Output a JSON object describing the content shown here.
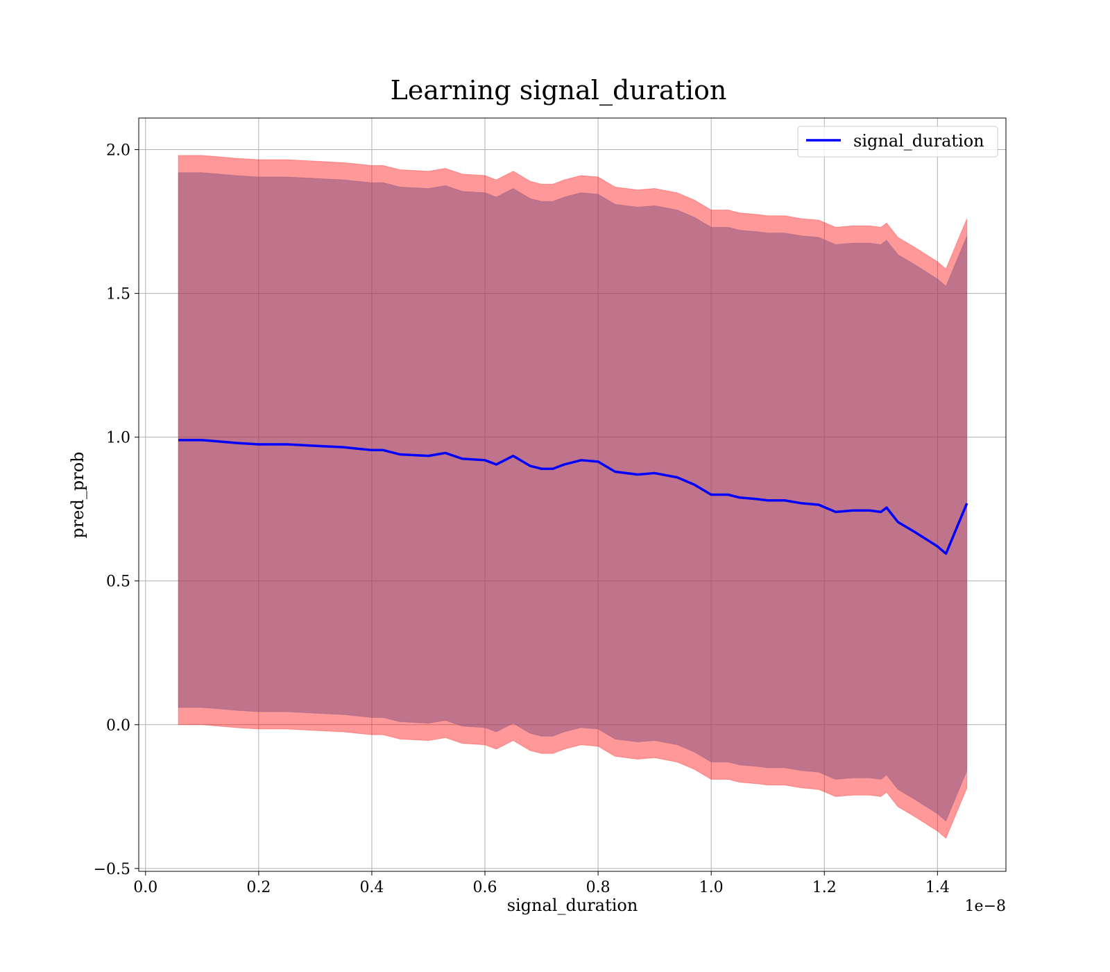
{
  "chart_data": {
    "type": "line",
    "title": "Learning signal_duration",
    "xlabel": "signal_duration",
    "ylabel": "pred_prob",
    "x_offset_label": "1e−8",
    "xlim": [
      -0.012,
      1.521
    ],
    "ylim": [
      -0.51,
      2.11
    ],
    "x_ticks": [
      0.0,
      0.2,
      0.4,
      0.6,
      0.8,
      1.0,
      1.2,
      1.4
    ],
    "x_tick_labels": [
      "0.0",
      "0.2",
      "0.4",
      "0.6",
      "0.8",
      "1.0",
      "1.2",
      "1.4"
    ],
    "y_ticks": [
      -0.5,
      0.0,
      0.5,
      1.0,
      1.5,
      2.0
    ],
    "y_tick_labels": [
      "−0.5",
      "0.0",
      "0.5",
      "1.0",
      "1.5",
      "2.0"
    ],
    "grid": true,
    "legend_position": "top-right",
    "series": [
      {
        "name": "signal_duration",
        "color": "#0000ff",
        "x": [
          0.058,
          0.08,
          0.1,
          0.13,
          0.16,
          0.2,
          0.25,
          0.3,
          0.35,
          0.4,
          0.42,
          0.45,
          0.5,
          0.53,
          0.56,
          0.6,
          0.62,
          0.65,
          0.68,
          0.7,
          0.72,
          0.74,
          0.77,
          0.8,
          0.83,
          0.87,
          0.9,
          0.94,
          0.97,
          1.0,
          1.03,
          1.05,
          1.08,
          1.1,
          1.13,
          1.16,
          1.19,
          1.22,
          1.25,
          1.28,
          1.3,
          1.31,
          1.33,
          1.36,
          1.38,
          1.4,
          1.415,
          1.452
        ],
        "values": [
          0.99,
          0.99,
          0.99,
          0.985,
          0.98,
          0.975,
          0.975,
          0.97,
          0.965,
          0.955,
          0.955,
          0.94,
          0.935,
          0.945,
          0.925,
          0.92,
          0.905,
          0.935,
          0.9,
          0.89,
          0.89,
          0.905,
          0.92,
          0.915,
          0.88,
          0.87,
          0.875,
          0.86,
          0.835,
          0.8,
          0.8,
          0.79,
          0.785,
          0.78,
          0.78,
          0.77,
          0.765,
          0.74,
          0.745,
          0.745,
          0.74,
          0.755,
          0.705,
          0.67,
          0.645,
          0.62,
          0.595,
          0.77
        ]
      }
    ],
    "bands": [
      {
        "color": "#ff0000",
        "upper": [
          1.98,
          1.98,
          1.98,
          1.975,
          1.97,
          1.965,
          1.965,
          1.96,
          1.955,
          1.945,
          1.945,
          1.93,
          1.925,
          1.935,
          1.915,
          1.91,
          1.895,
          1.925,
          1.89,
          1.88,
          1.88,
          1.895,
          1.91,
          1.905,
          1.87,
          1.86,
          1.865,
          1.85,
          1.825,
          1.79,
          1.79,
          1.78,
          1.775,
          1.77,
          1.77,
          1.76,
          1.755,
          1.73,
          1.735,
          1.735,
          1.73,
          1.745,
          1.695,
          1.66,
          1.635,
          1.61,
          1.585,
          1.76
        ],
        "lower": [
          0.0,
          0.0,
          0.0,
          -0.005,
          -0.01,
          -0.015,
          -0.015,
          -0.02,
          -0.025,
          -0.035,
          -0.035,
          -0.05,
          -0.055,
          -0.045,
          -0.065,
          -0.07,
          -0.085,
          -0.055,
          -0.09,
          -0.1,
          -0.1,
          -0.085,
          -0.07,
          -0.075,
          -0.11,
          -0.12,
          -0.115,
          -0.13,
          -0.155,
          -0.19,
          -0.19,
          -0.2,
          -0.205,
          -0.21,
          -0.21,
          -0.22,
          -0.225,
          -0.25,
          -0.245,
          -0.245,
          -0.25,
          -0.235,
          -0.285,
          -0.32,
          -0.345,
          -0.37,
          -0.395,
          -0.22
        ]
      },
      {
        "color": "#7f4f7f",
        "upper": [
          1.92,
          1.92,
          1.92,
          1.915,
          1.91,
          1.905,
          1.905,
          1.9,
          1.895,
          1.885,
          1.885,
          1.87,
          1.865,
          1.875,
          1.855,
          1.85,
          1.835,
          1.865,
          1.83,
          1.82,
          1.82,
          1.835,
          1.85,
          1.845,
          1.81,
          1.8,
          1.805,
          1.79,
          1.765,
          1.73,
          1.73,
          1.72,
          1.715,
          1.71,
          1.71,
          1.7,
          1.695,
          1.67,
          1.675,
          1.675,
          1.67,
          1.685,
          1.635,
          1.6,
          1.575,
          1.55,
          1.525,
          1.7
        ],
        "lower": [
          0.06,
          0.06,
          0.06,
          0.055,
          0.05,
          0.045,
          0.045,
          0.04,
          0.035,
          0.025,
          0.025,
          0.01,
          0.005,
          0.015,
          -0.005,
          -0.01,
          -0.025,
          0.005,
          -0.03,
          -0.04,
          -0.04,
          -0.025,
          -0.01,
          -0.015,
          -0.05,
          -0.06,
          -0.055,
          -0.07,
          -0.095,
          -0.13,
          -0.13,
          -0.14,
          -0.145,
          -0.15,
          -0.15,
          -0.16,
          -0.165,
          -0.19,
          -0.185,
          -0.185,
          -0.19,
          -0.175,
          -0.225,
          -0.26,
          -0.285,
          -0.31,
          -0.335,
          -0.16
        ]
      }
    ]
  }
}
